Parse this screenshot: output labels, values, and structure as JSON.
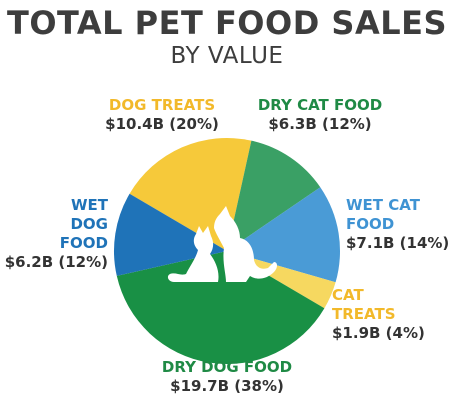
{
  "title": "TOTAL PET FOOD SALES",
  "subtitle": "BY VALUE",
  "chart_data": {
    "type": "pie",
    "title": "TOTAL PET FOOD SALES",
    "subtitle": "BY VALUE",
    "slices": [
      {
        "name": "DOG TREATS",
        "value": 10.4,
        "percent": 20,
        "label": "$10.4B (20%)",
        "color": "#f6c93a"
      },
      {
        "name": "DRY CAT FOOD",
        "value": 6.3,
        "percent": 12,
        "label": "$6.3B (12%)",
        "color": "#3aa065"
      },
      {
        "name": "WET CAT FOOD",
        "value": 7.1,
        "percent": 14,
        "label": "$7.1B (14%)",
        "color": "#4a9bd6"
      },
      {
        "name": "CAT TREATS",
        "value": 1.9,
        "percent": 4,
        "label": "$1.9B (4%)",
        "color": "#f6d860"
      },
      {
        "name": "DRY DOG FOOD",
        "value": 19.7,
        "percent": 38,
        "label": "$19.7B (38%)",
        "color": "#199045"
      },
      {
        "name": "WET DOG FOOD",
        "value": 6.2,
        "percent": 12,
        "label": "$6.2B (12%)",
        "color": "#1f73b8"
      }
    ],
    "label_colors": {
      "DOG TREATS": "#f2b92a",
      "DRY CAT FOOD": "#1f8a45",
      "WET CAT FOOD": "#3f93d3",
      "CAT TREATS": "#f2b92a",
      "DRY DOG FOOD": "#1f8a45",
      "WET DOG FOOD": "#1f73b8"
    },
    "center_icon": "cat-and-dog-silhouette-icon"
  }
}
